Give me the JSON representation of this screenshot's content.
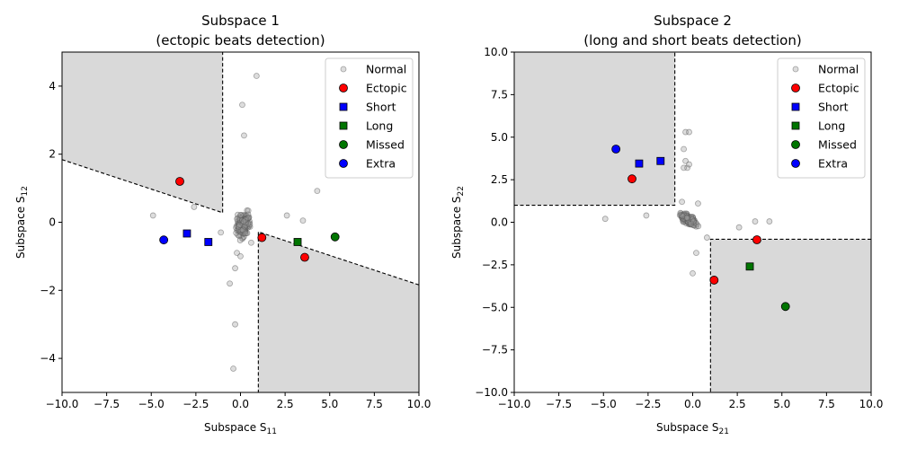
{
  "chart_data": [
    {
      "type": "scatter",
      "title": "Subspace 1",
      "subtitle": "(ectopic beats detection)",
      "xlabel": "Subspace S",
      "xlabel_sub": "11",
      "ylabel": "Subspace S",
      "ylabel_sub": "12",
      "xlim": [
        -10,
        10
      ],
      "ylim": [
        -5,
        5
      ],
      "xticks": [
        -10,
        -7.5,
        -5,
        -2.5,
        0,
        2.5,
        5,
        7.5,
        10
      ],
      "xtick_labels": [
        "−10.0",
        "−7.5",
        "−5.0",
        "−2.5",
        "0.0",
        "2.5",
        "5.0",
        "7.5",
        "10.0"
      ],
      "yticks": [
        -4,
        -2,
        0,
        2,
        4
      ],
      "ytick_labels": [
        "−4",
        "−2",
        "0",
        "2",
        "4"
      ],
      "grid": false,
      "legend_position": "top-right",
      "regions": [
        {
          "polygon": [
            [
              -10,
              5
            ],
            [
              -1,
              5
            ],
            [
              -1,
              0.28
            ],
            [
              -10,
              1.84
            ]
          ]
        },
        {
          "polygon": [
            [
              1,
              -5
            ],
            [
              10,
              -5
            ],
            [
              10,
              -1.84
            ],
            [
              1,
              -0.28
            ]
          ]
        }
      ],
      "boundaries": [
        {
          "points": [
            [
              -10,
              1.84
            ],
            [
              -1,
              0.28
            ],
            [
              -1,
              5
            ]
          ]
        },
        {
          "points": [
            [
              10,
              -1.84
            ],
            [
              1,
              -0.28
            ],
            [
              1,
              -5
            ]
          ]
        }
      ],
      "series": [
        {
          "name": "Normal",
          "marker": "circle-hollow",
          "color": "#9e9e9e",
          "points": [
            [
              0.9,
              4.3
            ],
            [
              0.1,
              3.45
            ],
            [
              0.2,
              2.55
            ],
            [
              -4.9,
              0.2
            ],
            [
              -2.6,
              0.45
            ],
            [
              2.6,
              0.2
            ],
            [
              3.5,
              0.05
            ],
            [
              4.3,
              0.92
            ],
            [
              -0.6,
              -1.8
            ],
            [
              -0.3,
              -1.35
            ],
            [
              -0.3,
              -3.0
            ],
            [
              -0.4,
              -4.3
            ],
            [
              0.6,
              -0.6
            ],
            [
              -0.2,
              -0.9
            ],
            [
              0.0,
              -1.0
            ],
            [
              -1.1,
              -0.3
            ]
          ]
        },
        {
          "name": "Ectopic",
          "marker": "circle",
          "color": "#ff0000",
          "points": [
            [
              -3.4,
              1.2
            ],
            [
              1.2,
              -0.45
            ],
            [
              3.6,
              -1.03
            ]
          ]
        },
        {
          "name": "Short",
          "marker": "square",
          "color": "#0000ff",
          "points": [
            [
              -3.0,
              -0.33
            ],
            [
              -1.8,
              -0.58
            ]
          ]
        },
        {
          "name": "Long",
          "marker": "square",
          "color": "#007500",
          "points": [
            [
              3.2,
              -0.58
            ]
          ]
        },
        {
          "name": "Missed",
          "marker": "circle",
          "color": "#007500",
          "points": [
            [
              5.3,
              -0.43
            ]
          ]
        },
        {
          "name": "Extra",
          "marker": "circle",
          "color": "#0000ff",
          "points": [
            [
              -4.3,
              -0.52
            ]
          ]
        }
      ]
    },
    {
      "type": "scatter",
      "title": "Subspace 2",
      "subtitle": "(long and short beats detection)",
      "xlabel": "Subspace S",
      "xlabel_sub": "21",
      "ylabel": "Subspace S",
      "ylabel_sub": "22",
      "xlim": [
        -10,
        10
      ],
      "ylim": [
        -10,
        10
      ],
      "xticks": [
        -10,
        -7.5,
        -5,
        -2.5,
        0,
        2.5,
        5,
        7.5,
        10
      ],
      "xtick_labels": [
        "−10.0",
        "−7.5",
        "−5.0",
        "−2.5",
        "0.0",
        "2.5",
        "5.0",
        "7.5",
        "10.0"
      ],
      "yticks": [
        -10,
        -7.5,
        -5,
        -2.5,
        0,
        2.5,
        5,
        7.5,
        10
      ],
      "ytick_labels": [
        "−10.0",
        "−7.5",
        "−5.0",
        "−2.5",
        "0.0",
        "2.5",
        "5.0",
        "7.5",
        "10.0"
      ],
      "grid": false,
      "legend_position": "top-right",
      "regions": [
        {
          "polygon": [
            [
              -10,
              10
            ],
            [
              -1,
              10
            ],
            [
              -1,
              1
            ],
            [
              -10,
              1
            ]
          ]
        },
        {
          "polygon": [
            [
              1,
              -1
            ],
            [
              10,
              -1
            ],
            [
              10,
              -10
            ],
            [
              1,
              -10
            ]
          ]
        }
      ],
      "boundaries": [
        {
          "points": [
            [
              -10,
              1
            ],
            [
              -1,
              1
            ],
            [
              -1,
              10
            ]
          ]
        },
        {
          "points": [
            [
              10,
              -1
            ],
            [
              1,
              -1
            ],
            [
              1,
              -10
            ]
          ]
        }
      ],
      "series": [
        {
          "name": "Normal",
          "marker": "circle-hollow",
          "color": "#9e9e9e",
          "points": [
            [
              -4.9,
              0.2
            ],
            [
              -2.6,
              0.4
            ],
            [
              -0.4,
              5.3
            ],
            [
              -0.2,
              5.3
            ],
            [
              -0.5,
              4.3
            ],
            [
              -0.4,
              3.6
            ],
            [
              -0.3,
              3.2
            ],
            [
              -0.5,
              3.2
            ],
            [
              -0.2,
              3.4
            ],
            [
              2.6,
              -0.3
            ],
            [
              3.5,
              0.05
            ],
            [
              4.3,
              0.05
            ],
            [
              0.0,
              -3.0
            ],
            [
              0.2,
              -1.8
            ],
            [
              -0.6,
              1.2
            ],
            [
              0.3,
              1.1
            ],
            [
              0.8,
              -0.9
            ]
          ]
        },
        {
          "name": "Ectopic",
          "marker": "circle",
          "color": "#ff0000",
          "points": [
            [
              -3.4,
              2.55
            ],
            [
              3.6,
              -1.03
            ],
            [
              1.2,
              -3.4
            ]
          ]
        },
        {
          "name": "Short",
          "marker": "square",
          "color": "#0000ff",
          "points": [
            [
              -3.0,
              3.45
            ],
            [
              -1.8,
              3.6
            ]
          ]
        },
        {
          "name": "Long",
          "marker": "square",
          "color": "#007500",
          "points": [
            [
              3.2,
              -2.6
            ]
          ]
        },
        {
          "name": "Missed",
          "marker": "circle",
          "color": "#007500",
          "points": [
            [
              5.2,
              -4.95
            ]
          ]
        },
        {
          "name": "Extra",
          "marker": "circle",
          "color": "#0000ff",
          "points": [
            [
              -4.3,
              4.3
            ]
          ]
        }
      ]
    }
  ],
  "colors": {
    "region_fill": "#d9d9d9",
    "normal_gray": "#9e9e9e",
    "ectopic_red": "#ff0000",
    "short_blue": "#0000ff",
    "long_green": "#007500",
    "missed_green": "#007500",
    "extra_blue": "#0000ff"
  }
}
